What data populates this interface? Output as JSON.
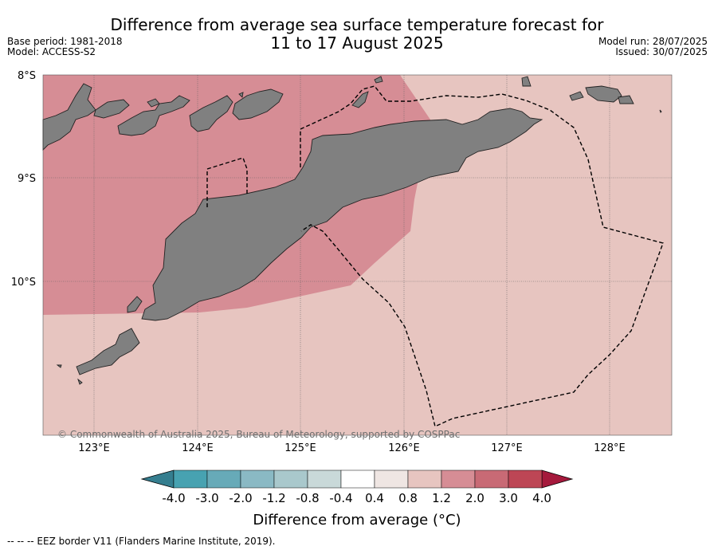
{
  "title_line1": "Difference from average sea surface temperature forecast for",
  "title_line2": "11 to 17 August 2025",
  "meta_left": {
    "base_period": "Base period: 1981-2018",
    "model": "Model: ACCESS-S2"
  },
  "meta_right": {
    "model_run": "Model run: 28/07/2025",
    "issued": "Issued: 30/07/2025"
  },
  "lat_labels": [
    "8°S",
    "9°S",
    "10°S"
  ],
  "lon_labels": [
    "123°E",
    "124°E",
    "125°E",
    "126°E",
    "127°E",
    "128°E"
  ],
  "copyright": "© Commonwealth of Australia 2025, Bureau of Meteorology, supported by COSPPac",
  "colorbar": {
    "ticks": [
      "-4.0",
      "-3.0",
      "-2.0",
      "-1.2",
      "-0.8",
      "-0.4",
      "0.4",
      "0.8",
      "1.2",
      "2.0",
      "3.0",
      "4.0"
    ],
    "colors": [
      "#47a2b1",
      "#67aab8",
      "#8ab9c4",
      "#a9c8cc",
      "#c9d9d9",
      "#ffffff",
      "#efe6e3",
      "#e7c5c0",
      "#d68d95",
      "#c86a75",
      "#bd4655"
    ],
    "under_color": "#357e8f",
    "over_color": "#a5193c",
    "title": "Difference from average (°C)"
  },
  "field_colors": {
    "warm_zone": "#d68d95",
    "mild_zone": "#e7c5c0",
    "land": "#808080"
  },
  "footnote": "--  --  -- EEZ border V11 (Flanders Marine Institute, 2019)."
}
